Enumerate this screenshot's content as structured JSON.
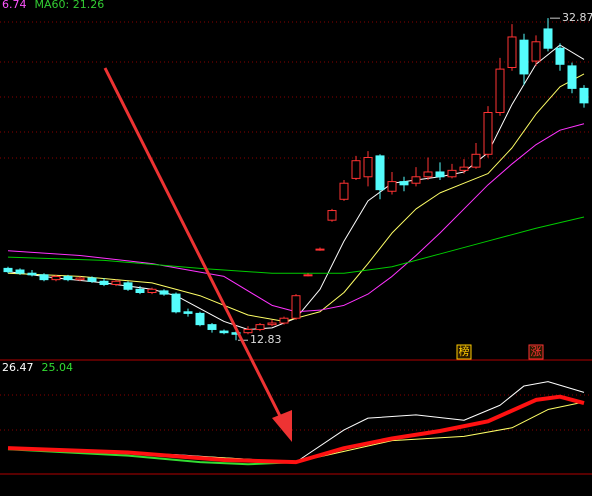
{
  "chart_data": [
    {
      "type": "candlestick",
      "header_labels": [
        {
          "text": "6.74",
          "color": "#ff55ff"
        },
        {
          "text": "MA60: 21.26",
          "color": "#33cc33"
        }
      ],
      "ylim": [
        11.6,
        34.0
      ],
      "up_color": "#ff3333",
      "down_color": "#54fcfc",
      "open": [
        17.3,
        17.2,
        17.0,
        16.9,
        16.6,
        16.8,
        16.6,
        16.7,
        16.5,
        16.3,
        16.4,
        16.0,
        15.8,
        15.9,
        15.7,
        14.6,
        14.5,
        13.8,
        13.4,
        13.3,
        13.3,
        13.5,
        13.8,
        13.9,
        14.2,
        16.9,
        18.5,
        20.3,
        21.6,
        22.9,
        23.0,
        24.3,
        22.1,
        22.7,
        22.6,
        23.0,
        23.3,
        23.0,
        23.4,
        23.6,
        24.4,
        27.0,
        29.8,
        31.5,
        30.2,
        32.2,
        31.0,
        29.9,
        28.5
      ],
      "close": [
        17.1,
        17.0,
        16.9,
        16.6,
        16.8,
        16.6,
        16.7,
        16.5,
        16.3,
        16.5,
        16.0,
        15.8,
        16.0,
        15.7,
        14.6,
        14.5,
        13.8,
        13.5,
        13.3,
        13.2,
        13.5,
        13.8,
        13.9,
        14.2,
        15.6,
        16.9,
        18.5,
        20.9,
        22.6,
        24.0,
        24.2,
        22.2,
        22.7,
        22.5,
        23.0,
        23.3,
        23.0,
        23.4,
        23.6,
        24.4,
        27.0,
        29.7,
        31.7,
        29.4,
        31.4,
        31.0,
        30.0,
        28.5,
        27.6
      ],
      "high": [
        17.4,
        17.3,
        17.2,
        17.0,
        16.9,
        16.9,
        16.8,
        16.8,
        16.7,
        16.6,
        16.5,
        16.2,
        16.1,
        16.0,
        15.8,
        14.8,
        14.6,
        13.9,
        13.5,
        13.4,
        13.7,
        13.9,
        14.1,
        14.3,
        15.7,
        17.0,
        18.6,
        21.0,
        22.8,
        24.3,
        24.6,
        24.4,
        23.3,
        23.0,
        23.6,
        24.2,
        23.9,
        23.8,
        24.1,
        25.1,
        27.4,
        30.4,
        32.5,
        31.9,
        31.8,
        32.87,
        31.3,
        30.1,
        28.7
      ],
      "low": [
        17.0,
        16.9,
        16.8,
        16.5,
        16.5,
        16.5,
        16.5,
        16.4,
        16.2,
        16.2,
        15.9,
        15.7,
        15.7,
        15.6,
        14.5,
        14.3,
        13.7,
        13.3,
        13.2,
        12.83,
        13.2,
        13.4,
        13.7,
        13.8,
        14.1,
        16.8,
        18.4,
        20.2,
        21.5,
        22.8,
        22.4,
        21.6,
        21.9,
        22.1,
        22.4,
        22.8,
        22.8,
        22.9,
        23.2,
        23.5,
        24.2,
        26.8,
        29.6,
        28.7,
        29.9,
        30.8,
        29.6,
        28.2,
        27.3
      ],
      "series": [
        {
          "color": "#ffffff",
          "x": [
            0,
            4,
            8,
            12,
            14,
            16,
            18,
            20,
            22,
            24,
            26,
            28,
            30,
            32,
            34,
            36,
            38,
            40,
            42,
            44,
            46,
            48
          ],
          "values": [
            17.1,
            16.7,
            16.4,
            16.0,
            15.6,
            14.8,
            14.0,
            13.5,
            13.6,
            14.2,
            16.0,
            19.0,
            21.5,
            22.6,
            22.8,
            23.0,
            23.3,
            24.5,
            27.5,
            30.0,
            31.2,
            30.3
          ]
        },
        {
          "color": "#ffff66",
          "x": [
            0,
            6,
            12,
            16,
            20,
            23,
            26,
            28,
            30,
            32,
            34,
            36,
            38,
            40,
            42,
            44,
            46,
            48
          ],
          "values": [
            17.0,
            16.8,
            16.4,
            15.6,
            14.4,
            14.0,
            14.6,
            15.8,
            17.6,
            19.5,
            21.0,
            22.0,
            22.6,
            23.2,
            24.8,
            26.9,
            28.6,
            29.4
          ]
        },
        {
          "color": "#ff33ff",
          "x": [
            0,
            6,
            12,
            18,
            22,
            24,
            26,
            28,
            30,
            32,
            34,
            36,
            38,
            40,
            42,
            44,
            46,
            48
          ],
          "values": [
            18.4,
            18.1,
            17.6,
            16.8,
            15.0,
            14.6,
            14.7,
            15.0,
            15.7,
            16.8,
            18.1,
            19.5,
            21.0,
            22.5,
            23.8,
            25.0,
            25.9,
            26.3
          ]
        },
        {
          "color": "#00cc00",
          "x": [
            0,
            8,
            16,
            22,
            28,
            32,
            36,
            40,
            44,
            48
          ],
          "values": [
            18.0,
            17.8,
            17.3,
            17.0,
            17.0,
            17.4,
            18.2,
            19.0,
            19.8,
            20.5
          ]
        }
      ],
      "annotations": [
        {
          "label": "32.87",
          "x": 45,
          "value": 32.87
        },
        {
          "label": "12.83",
          "x": 19,
          "value": 12.83
        }
      ],
      "badges": [
        {
          "text": "榜",
          "x": 38,
          "color": "#ffcc00"
        },
        {
          "text": "涨",
          "x": 44,
          "color": "#ff3333"
        }
      ]
    },
    {
      "type": "line",
      "header_labels": [
        {
          "text": "26.47",
          "color": "#ffffff"
        },
        {
          "text": "25.04",
          "color": "#33dd33"
        }
      ],
      "ylim": [
        17,
        28
      ],
      "series": [
        {
          "color": "#ffffff",
          "width": 1,
          "x": [
            0,
            8,
            14,
            18,
            24,
            28,
            30,
            34,
            38,
            41,
            43,
            45,
            48
          ],
          "values": [
            20.9,
            20.5,
            20.3,
            20.0,
            19.6,
            22.6,
            23.7,
            24.0,
            23.5,
            24.9,
            26.7,
            27.1,
            26.1
          ]
        },
        {
          "color": "#ffff66",
          "width": 1,
          "x": [
            0,
            10,
            18,
            24,
            28,
            32,
            38,
            42,
            45,
            48
          ],
          "values": [
            20.8,
            20.5,
            20.0,
            19.6,
            20.6,
            21.6,
            22.0,
            22.8,
            24.5,
            25.2
          ]
        },
        {
          "color": "#33dd33",
          "width": 2,
          "x": [
            0,
            10,
            16,
            20,
            24
          ],
          "values": [
            20.8,
            20.2,
            19.6,
            19.4,
            19.6
          ]
        },
        {
          "color": "#ff1111",
          "width": 4,
          "x": [
            0,
            10,
            18,
            24,
            28,
            32,
            36,
            40,
            44,
            46,
            48
          ],
          "values": [
            20.9,
            20.5,
            19.8,
            19.6,
            20.9,
            21.8,
            22.5,
            23.4,
            25.4,
            25.7,
            25.1
          ]
        }
      ]
    }
  ]
}
